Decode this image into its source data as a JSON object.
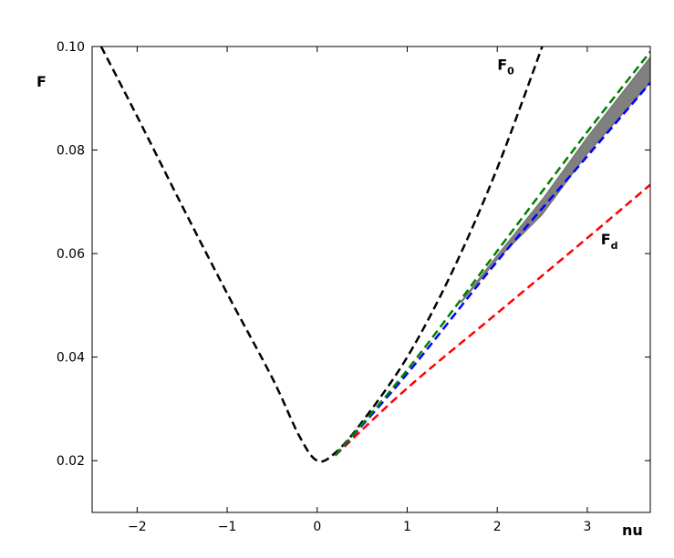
{
  "chart_data": {
    "type": "line",
    "title": "",
    "xlabel": "nu",
    "ylabel": "F",
    "xlim": [
      -2.5,
      3.7
    ],
    "ylim": [
      0.01,
      0.1
    ],
    "xticks": [
      -2,
      -1,
      0,
      1,
      2,
      3
    ],
    "xtick_labels": [
      "−2",
      "−1",
      "0",
      "1",
      "2",
      "3"
    ],
    "yticks": [
      0.02,
      0.04,
      0.06,
      0.08,
      0.1
    ],
    "ytick_labels": [
      "0.02",
      "0.04",
      "0.06",
      "0.08",
      "0.10"
    ],
    "grid": false,
    "series": [
      {
        "color": "#000000",
        "style": "dashed",
        "x": [
          -2.4,
          -2.0,
          -1.5,
          -1.0,
          -0.5,
          -0.2,
          0.0,
          0.2,
          0.5,
          1.0,
          1.5,
          2.0,
          2.5
        ],
        "y": [
          0.1,
          0.0865,
          0.0692,
          0.0523,
          0.036,
          0.0248,
          0.02,
          0.0215,
          0.0275,
          0.04,
          0.0565,
          0.0765,
          0.1
        ]
      },
      {
        "color": "#ff0000",
        "style": "dashed",
        "x": [
          0.2,
          1.0,
          2.0,
          3.0,
          3.7
        ],
        "y": [
          0.021,
          0.034,
          0.0485,
          0.063,
          0.0733
        ]
      },
      {
        "color": "#0000ff",
        "style": "dashed",
        "x": [
          0.2,
          1.0,
          2.0,
          3.0,
          3.7
        ],
        "y": [
          0.021,
          0.0368,
          0.0585,
          0.0788,
          0.093
        ]
      },
      {
        "color": "#008000",
        "style": "dashed",
        "x": [
          0.2,
          1.0,
          2.0,
          3.0,
          3.7
        ],
        "y": [
          0.021,
          0.0375,
          0.0605,
          0.0835,
          0.099
        ]
      }
    ],
    "band": {
      "color": "#808080",
      "x": [
        1.6,
        2.0,
        2.5,
        3.0,
        3.7
      ],
      "y_lower": [
        0.0505,
        0.0588,
        0.0675,
        0.0792,
        0.093
      ],
      "y_upper": [
        0.0508,
        0.0597,
        0.0705,
        0.0825,
        0.098
      ]
    },
    "annotations": [
      {
        "text": "F",
        "sub": "0",
        "x": 2.0,
        "y": 0.0955
      },
      {
        "text": "F",
        "sub": "d",
        "x": 3.15,
        "y": 0.0618
      }
    ]
  }
}
